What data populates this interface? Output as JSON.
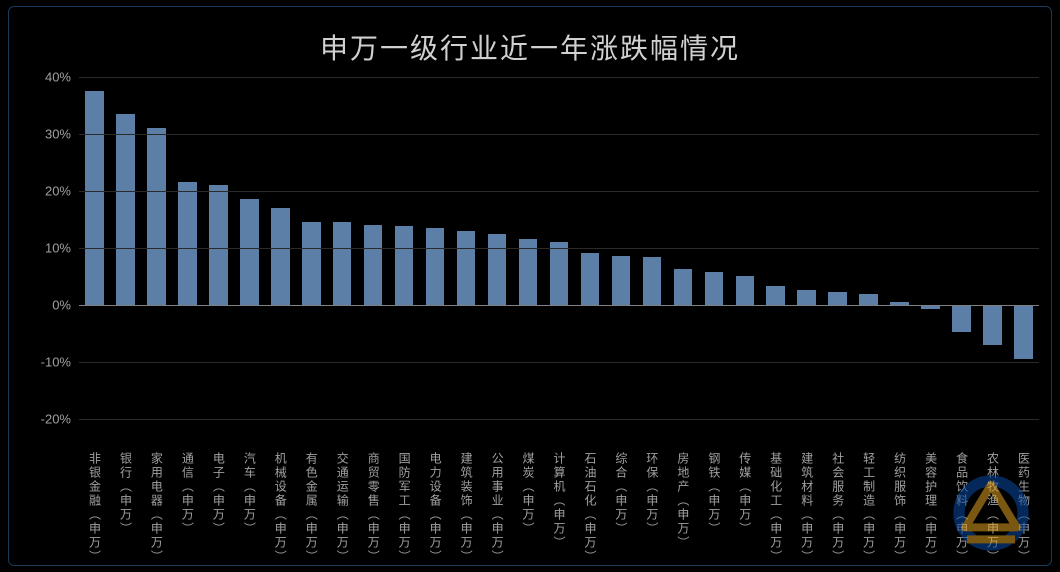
{
  "chart": {
    "type": "bar",
    "title": "申万一级行业近一年涨跌幅情况",
    "title_fontsize": 28,
    "title_color": "#d0d0d0",
    "background_color": "#000000",
    "frame_border_color": "#1a3a5a",
    "grid_color": "#2a2a2a",
    "zero_line_color": "#808080",
    "bar_color": "#5b7fa6",
    "bar_width": 0.6,
    "axis_label_color": "#a0a0a0",
    "axis_label_fontsize": 13,
    "category_label_fontsize": 12,
    "y": {
      "min": -25,
      "max": 40,
      "tick_step": 10,
      "format": "percent",
      "ticks": [
        40,
        30,
        20,
        10,
        0,
        -10,
        -20
      ]
    },
    "categories": [
      "非银金融（申万）",
      "银行（申万）",
      "家用电器（申万）",
      "通信（申万）",
      "电子（申万）",
      "汽车（申万）",
      "机械设备（申万）",
      "有色金属（申万）",
      "交通运输（申万）",
      "商贸零售（申万）",
      "国防军工（申万）",
      "电力设备（申万）",
      "建筑装饰（申万）",
      "公用事业（申万）",
      "煤炭（申万）",
      "计算机（申万）",
      "石油石化（申万）",
      "综合（申万）",
      "环保（申万）",
      "房地产（申万）",
      "钢铁（申万）",
      "传媒（申万）",
      "基础化工（申万）",
      "建筑材料（申万）",
      "社会服务（申万）",
      "轻工制造（申万）",
      "纺织服饰（申万）",
      "美容护理（申万）",
      "食品饮料（申万）",
      "农林牧渔（申万）",
      "医药生物（申万）"
    ],
    "values": [
      37.5,
      33.5,
      31.0,
      21.5,
      21.0,
      18.5,
      17.0,
      14.5,
      14.5,
      14.0,
      13.8,
      13.5,
      13.0,
      12.5,
      11.5,
      11.0,
      9.0,
      8.5,
      8.3,
      6.3,
      5.8,
      5.0,
      3.2,
      2.5,
      2.3,
      1.8,
      0.5,
      -0.8,
      -4.8,
      -7.0,
      -9.5
    ],
    "logo": {
      "ring_color": "#0a4aa6",
      "shape_color": "#e0a020",
      "opacity": 0.55
    }
  }
}
